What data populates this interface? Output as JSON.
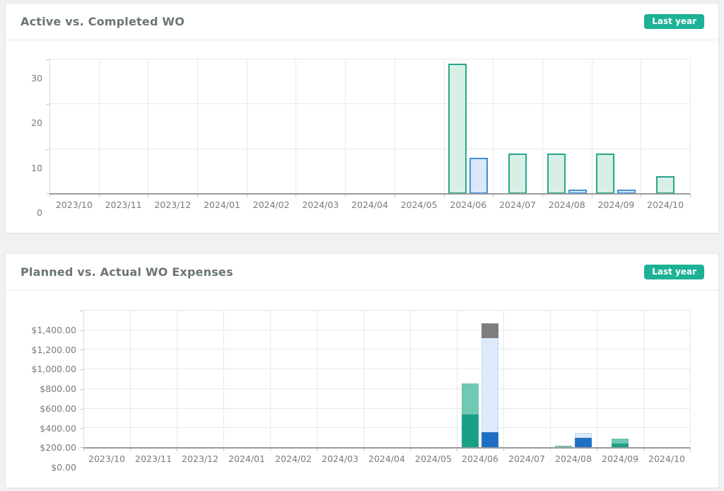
{
  "page": {
    "background": "#f0f1f2"
  },
  "cards": [
    {
      "title": "Active vs. Completed WO",
      "badge": {
        "label": "Last year",
        "color": "#1db295"
      }
    },
    {
      "title": "Planned vs. Actual WO Expenses",
      "badge": {
        "label": "Last year",
        "color": "#1db295"
      }
    }
  ],
  "chart_data": [
    {
      "type": "bar",
      "title": "Active vs. Completed WO",
      "categories": [
        "2023/10",
        "2023/11",
        "2023/12",
        "2024/01",
        "2024/02",
        "2024/03",
        "2024/04",
        "2024/05",
        "2024/06",
        "2024/07",
        "2024/08",
        "2024/09",
        "2024/10"
      ],
      "series": [
        {
          "name": "active-wo",
          "fill": "#d8efe6",
          "border": "#26a78c",
          "values": [
            0,
            0,
            0,
            0,
            0,
            0,
            0,
            0,
            29,
            9,
            9,
            9,
            4
          ]
        },
        {
          "name": "completed-wo",
          "fill": "#d9e9fb",
          "border": "#3e8ede",
          "values": [
            0,
            0,
            0,
            0,
            0,
            0,
            0,
            0,
            8,
            0,
            1,
            1,
            0
          ]
        }
      ],
      "ylim": [
        0,
        30
      ],
      "yticks": [
        {
          "value": 0,
          "label": "0"
        },
        {
          "value": 10,
          "label": "10"
        },
        {
          "value": 20,
          "label": "20"
        },
        {
          "value": 30,
          "label": "30"
        }
      ],
      "grid": true,
      "legend": "none"
    },
    {
      "type": "bar",
      "stacked": true,
      "title": "Planned vs. Actual WO Expenses",
      "categories": [
        "2023/10",
        "2023/11",
        "2023/12",
        "2024/01",
        "2024/02",
        "2024/03",
        "2024/04",
        "2024/05",
        "2024/06",
        "2024/07",
        "2024/08",
        "2024/09",
        "2024/10"
      ],
      "series": [
        {
          "name": "planned-expenses",
          "stack": [
            {
              "name": "planned-lower",
              "color": "#17a288",
              "values": [
                0,
                0,
                0,
                0,
                0,
                0,
                0,
                0,
                340,
                0,
                0,
                45,
                0
              ]
            },
            {
              "name": "planned-upper",
              "color": "#6fc9b3",
              "values": [
                0,
                0,
                0,
                0,
                0,
                0,
                0,
                0,
                320,
                0,
                20,
                50,
                0
              ]
            }
          ]
        },
        {
          "name": "actual-expenses",
          "stack": [
            {
              "name": "actual-lower",
              "color": "#1e6fc4",
              "values": [
                0,
                0,
                0,
                0,
                0,
                0,
                0,
                0,
                160,
                0,
                100,
                0,
                0
              ]
            },
            {
              "name": "actual-middle",
              "color": "#dcebfb",
              "values": [
                0,
                0,
                0,
                0,
                0,
                0,
                0,
                0,
                960,
                0,
                55,
                0,
                0
              ]
            },
            {
              "name": "actual-upper",
              "color": "#7e7e7e",
              "values": [
                0,
                0,
                0,
                0,
                0,
                0,
                0,
                0,
                150,
                0,
                0,
                0,
                0
              ]
            }
          ]
        }
      ],
      "ylim": [
        0,
        1400
      ],
      "yticks": [
        {
          "value": 0,
          "label": "$0.00"
        },
        {
          "value": 200,
          "label": "$200.00"
        },
        {
          "value": 400,
          "label": "$400.00"
        },
        {
          "value": 600,
          "label": "$600.00"
        },
        {
          "value": 800,
          "label": "$800.00"
        },
        {
          "value": 1000,
          "label": "$1,000.00"
        },
        {
          "value": 1200,
          "label": "$1,200.00"
        },
        {
          "value": 1400,
          "label": "$1,400.00"
        }
      ],
      "grid": true,
      "legend": "none"
    }
  ]
}
